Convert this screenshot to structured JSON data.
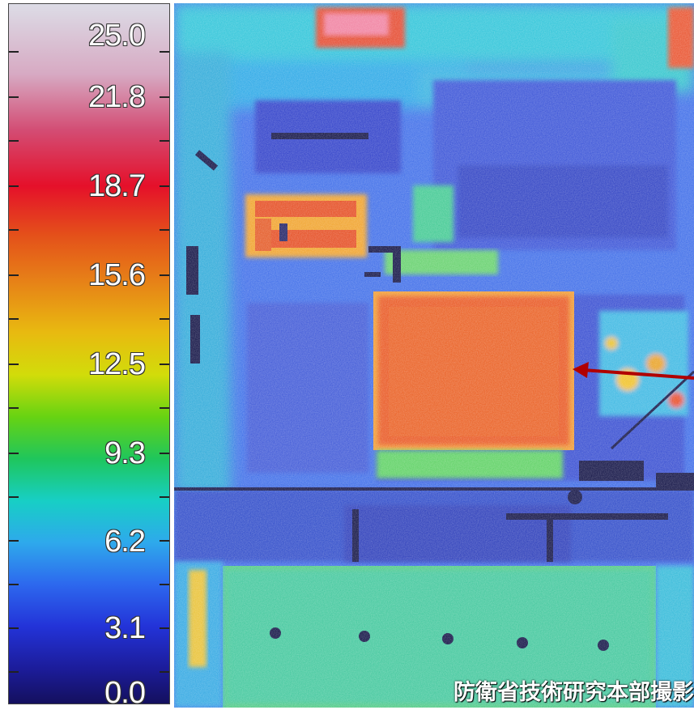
{
  "scale": {
    "labels": [
      "25.0",
      "21.8",
      "18.7",
      "15.6",
      "12.5",
      "9.3",
      "6.2",
      "3.1",
      "0.0"
    ],
    "min": 0.0,
    "max": 25.0
  },
  "credit": "防衛省技術研究本部撮影",
  "colors": {
    "hot": "#e6481c",
    "warm": "#f0a020",
    "cool": "#2e6de8",
    "cold": "#1a1d8e",
    "arrow": "#b00000"
  }
}
